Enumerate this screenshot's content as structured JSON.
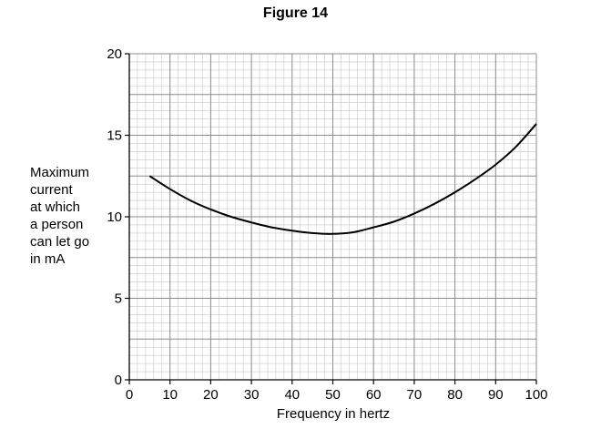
{
  "figure_title": "Figure 14",
  "chart_data": {
    "type": "line",
    "title": "Figure 14",
    "xlabel": "Frequency in hertz",
    "ylabel": "Maximum current at which a person can let go in mA",
    "ylabel_lines": [
      "Maximum",
      "current",
      "at which",
      "a person",
      "can let go",
      "in mA"
    ],
    "xlim": [
      0,
      100
    ],
    "ylim": [
      0,
      20
    ],
    "x_ticks": [
      0,
      10,
      20,
      30,
      40,
      50,
      60,
      70,
      80,
      90,
      100
    ],
    "y_ticks": [
      0,
      5,
      10,
      15,
      20
    ],
    "grid": true,
    "minor_grid_step_x": 2,
    "minor_grid_step_y": 0.5,
    "series": [
      {
        "x": [
          5,
          10,
          15,
          20,
          25,
          30,
          35,
          40,
          45,
          50,
          55,
          60,
          65,
          70,
          75,
          80,
          85,
          90,
          95,
          100
        ],
        "y": [
          12.5,
          11.7,
          11.0,
          10.45,
          10.0,
          9.65,
          9.35,
          9.15,
          9.0,
          8.95,
          9.05,
          9.35,
          9.7,
          10.2,
          10.8,
          11.5,
          12.3,
          13.2,
          14.3,
          15.7
        ]
      }
    ],
    "colors": {
      "curve": "#000000",
      "major_grid": "#8c8c8c",
      "minor_grid": "#c8c8c8",
      "axis": "#000000"
    }
  }
}
